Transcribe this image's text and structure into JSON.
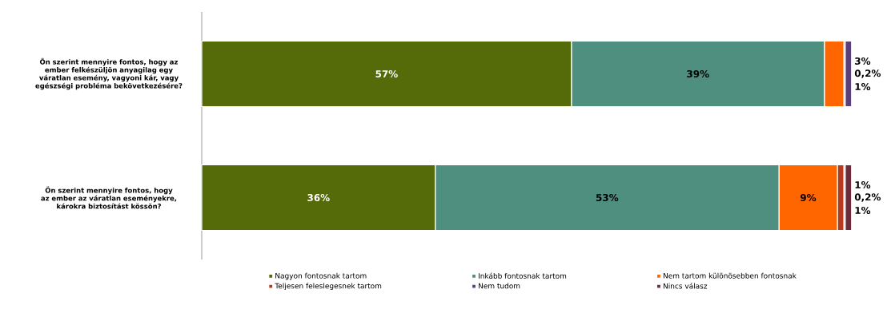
{
  "chart_data": {
    "type": "bar",
    "orientation": "horizontal",
    "stacked": true,
    "categories": [
      "Ön szerint mennyire fontos, hogy az ember felkészüljön anyagilag egy váratlan esemény, vagyoni kár, vagy egészségi probléma bekövetkezésére?",
      "Ön szerint mennyire fontos, hogy az ember az váratlan eseményekre, károkra biztosítást kössön?"
    ],
    "series": [
      {
        "name": "Nagyon fontosnak tartom",
        "color": "#556b0a",
        "values": [
          57,
          36
        ],
        "value_labels": [
          "57%",
          "36%"
        ]
      },
      {
        "name": "Inkább fontosnak tartom",
        "color": "#4e8f80",
        "values": [
          39,
          53
        ],
        "value_labels": [
          "39%",
          "53%"
        ]
      },
      {
        "name": "Nem tartom különösebben fontosnak",
        "color": "#ff6600",
        "values": [
          3,
          9
        ],
        "value_labels": [
          "3%",
          "9%"
        ]
      },
      {
        "name": "Teljesen feleslegesnek tartom",
        "color": "#b83a1e",
        "values": [
          0.2,
          1
        ],
        "value_labels": [
          "0,2%",
          "1%"
        ]
      },
      {
        "name": "Nem tudom",
        "color": "#5b3f7a",
        "values": [
          1,
          0.2
        ],
        "value_labels": [
          "1%",
          "0,2%"
        ]
      },
      {
        "name": "Nincs válasz",
        "color": "#6b2d3a",
        "values": [
          null,
          1
        ],
        "value_labels": [
          null,
          "1%"
        ]
      }
    ],
    "legend": "bottom"
  }
}
